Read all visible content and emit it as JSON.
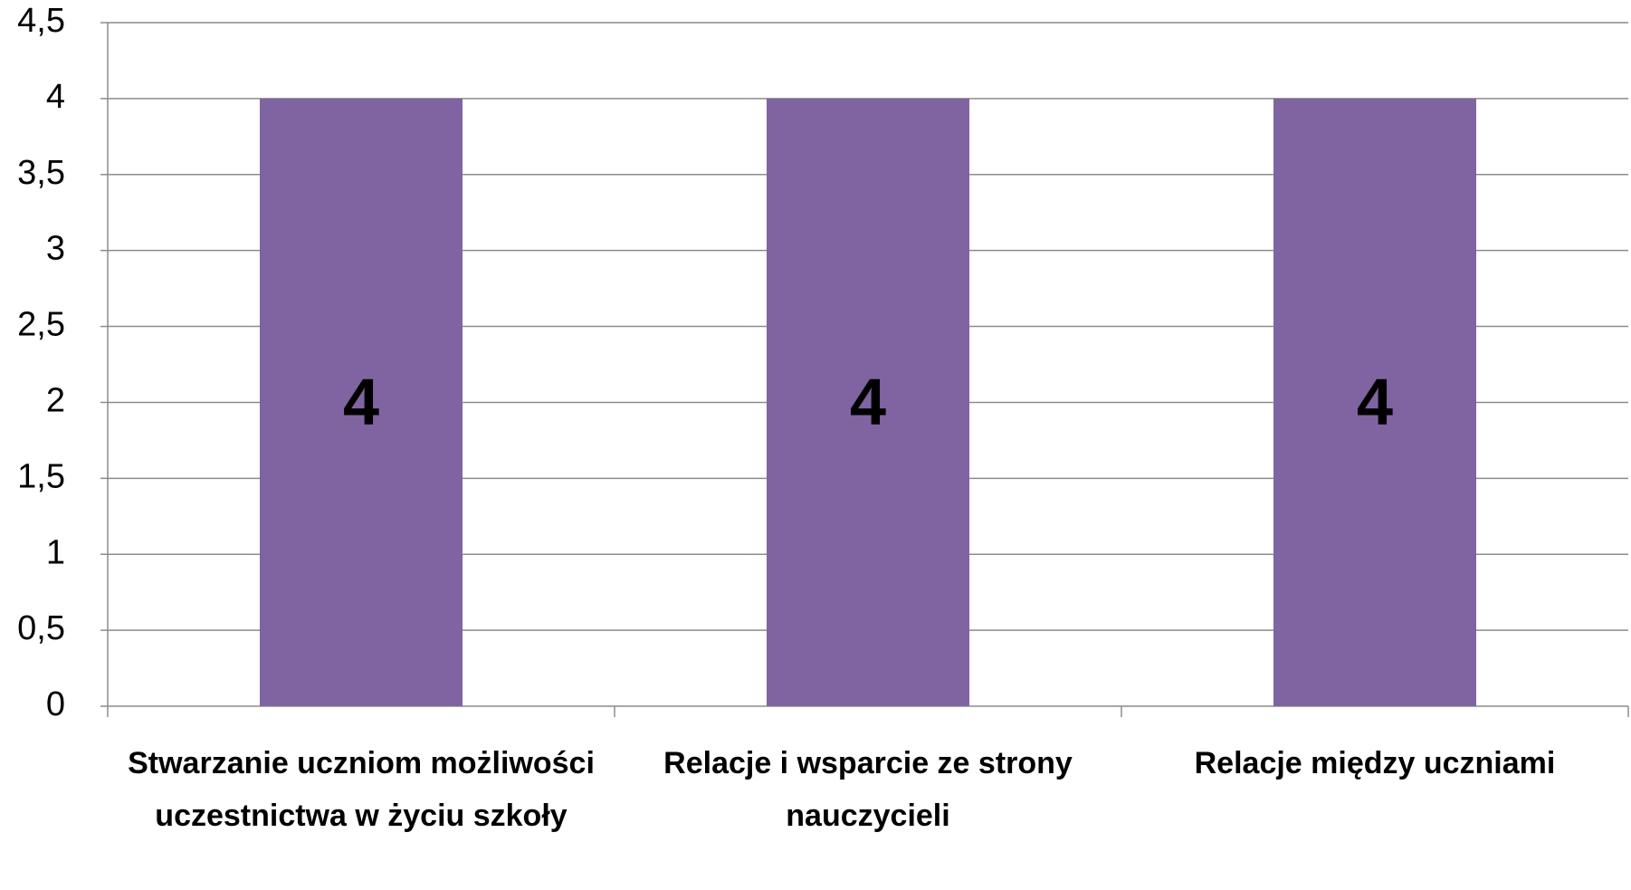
{
  "chart_data": {
    "type": "bar",
    "categories": [
      "Stwarzanie uczniom możliwości uczestnictwa w życiu szkoły",
      "Relacje i wsparcie ze strony nauczycieli",
      "Relacje między uczniami"
    ],
    "values": [
      4,
      4,
      4
    ],
    "color": "#8064a2",
    "ylim": [
      0,
      4.5
    ],
    "yticks": [
      0,
      {
        "value": 0.5,
        "label": "0,5"
      },
      1,
      {
        "value": 1.5,
        "label": "1,5"
      },
      2,
      {
        "value": 2.5,
        "label": "2,5"
      },
      3,
      {
        "value": 3.5,
        "label": "3,5"
      },
      4,
      {
        "value": 4.5,
        "label": "4,5"
      }
    ],
    "grid": true
  }
}
